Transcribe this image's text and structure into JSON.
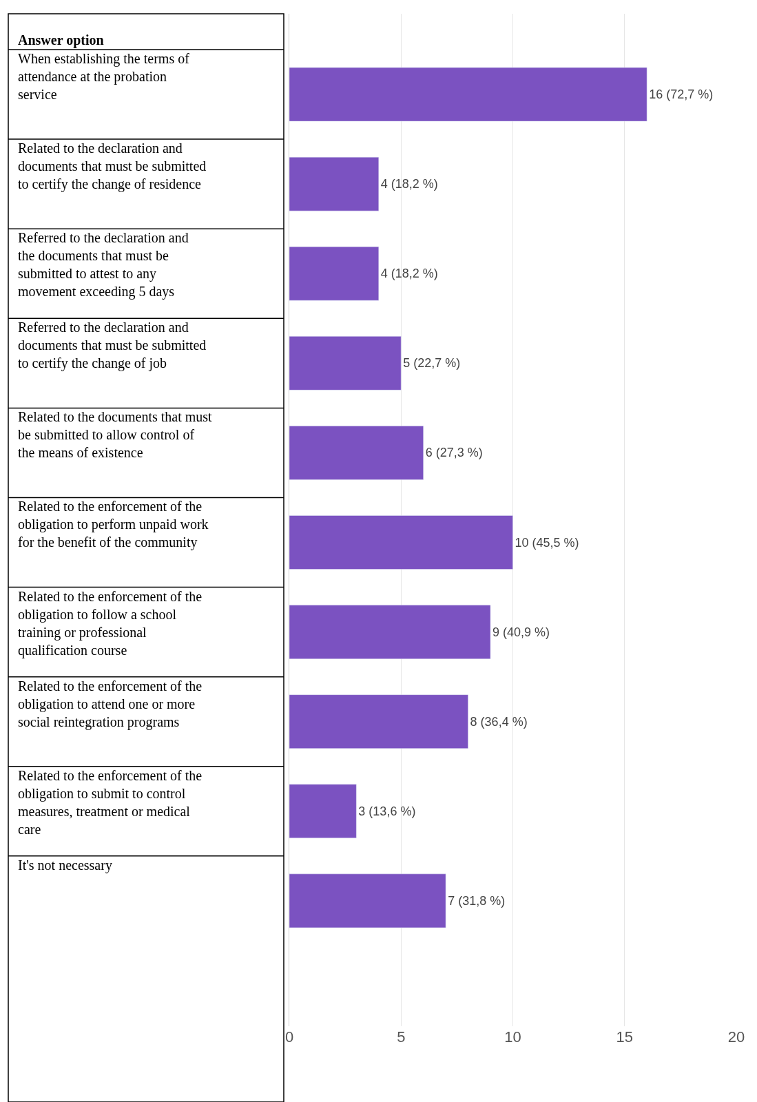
{
  "chart_data": {
    "type": "bar",
    "orientation": "horizontal",
    "ylabel": "Answer option",
    "categories": [
      "When establishing the terms of attendance at the probation service",
      "Related to the declaration and documents that must be submitted to certify the change of residence",
      "Referred to the declaration and the documents that must be submitted to attest to any movement exceeding 5 days",
      "Referred to the declaration and documents that must be submitted to certify the change of job",
      "Related to the documents that must be submitted to allow control of the means of existence",
      "Related to the enforcement of the obligation to perform unpaid work for the benefit of the community",
      "Related to the enforcement of the obligation to follow a school training or professional qualification course",
      "Related to the enforcement of the obligation to attend one or more social reintegration programs",
      "Related to the enforcement of the obligation to submit to control measures, treatment or medical care",
      "It's not necessary"
    ],
    "values": [
      16,
      4,
      4,
      5,
      6,
      10,
      9,
      8,
      3,
      7
    ],
    "value_labels": [
      "16 (72,7 %)",
      "4 (18,2 %)",
      "4 (18,2 %)",
      "5 (22,7 %)",
      "6 (27,3 %)",
      "10 (45,5 %)",
      "9 (40,9 %)",
      "8 (36,4 %)",
      "3 (13,6 %)",
      "7 (31,8 %)"
    ],
    "color": "#7b52c1",
    "xlim": [
      0,
      20
    ],
    "xticks": [
      0,
      5,
      10,
      15,
      20
    ],
    "grid": "x",
    "legend": false
  }
}
